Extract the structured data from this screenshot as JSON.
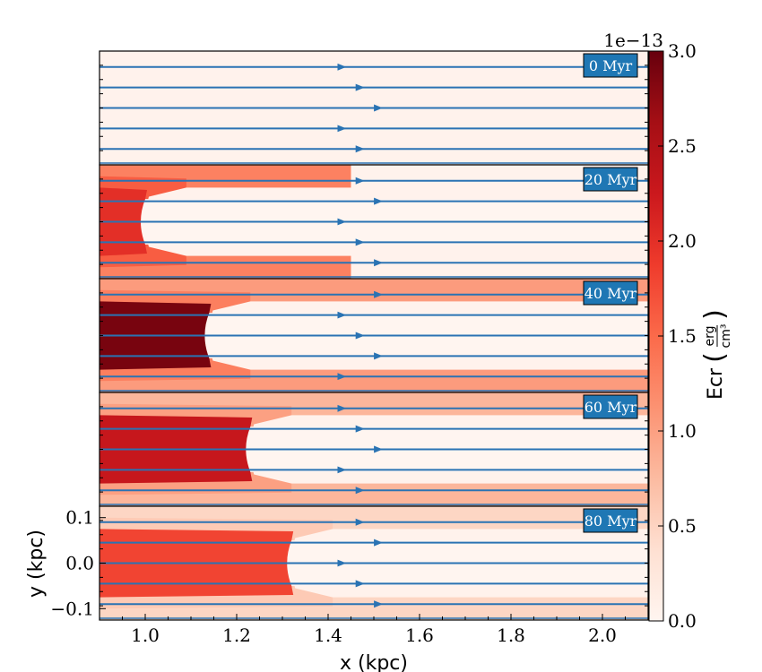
{
  "chart_data": {
    "type": "heatmap",
    "xlabel": "x  (kpc)",
    "ylabel": "y  (kpc)",
    "xlim": [
      0.9,
      2.1
    ],
    "ylim": [
      -0.125,
      0.125
    ],
    "x_ticks": [
      1.0,
      1.2,
      1.4,
      1.6,
      1.8,
      2.0
    ],
    "x_tick_labels": [
      "1.0",
      "1.2",
      "1.4",
      "1.6",
      "1.8",
      "2.0"
    ],
    "y_ticks": [
      0.1,
      0.0,
      -0.1
    ],
    "y_tick_labels": [
      "0.1",
      "0.0",
      "−0.1"
    ],
    "colorbar": {
      "label": "Ecr",
      "unit_numerator": "erg",
      "unit_denominator": "cm³",
      "multiplier": "1e−13",
      "range": [
        0.0,
        3.0
      ],
      "ticks": [
        0.0,
        0.5,
        1.0,
        1.5,
        2.0,
        2.5,
        3.0
      ],
      "tick_labels": [
        "0.0",
        "0.5",
        "1.0",
        "1.5",
        "2.0",
        "2.5",
        "3.0"
      ],
      "colormap": "Reds"
    },
    "panels": [
      {
        "label": "0 Myr",
        "cavity_edge_x": null,
        "core_value": 0.05,
        "sheath_value": 0.05,
        "sheath_end_x": 0.9
      },
      {
        "label": "20 Myr",
        "cavity_edge_x": 1.0,
        "core_value": 2.0,
        "sheath_value": 1.6,
        "sheath_end_x": 1.45
      },
      {
        "label": "40 Myr",
        "cavity_edge_x": 1.14,
        "core_value": 2.9,
        "sheath_value": 1.3,
        "sheath_end_x": 2.1
      },
      {
        "label": "60 Myr",
        "cavity_edge_x": 1.23,
        "core_value": 2.3,
        "sheath_value": 1.0,
        "sheath_end_x": 2.1
      },
      {
        "label": "80 Myr",
        "cavity_edge_x": 1.32,
        "core_value": 1.8,
        "sheath_value": 0.6,
        "sheath_end_x": 2.1
      }
    ],
    "streamlines_y": [
      0.09,
      0.045,
      0.0,
      -0.045,
      -0.09
    ]
  },
  "colors": {
    "streamline": "#2a73b3",
    "label_box": "#1f77b4"
  }
}
